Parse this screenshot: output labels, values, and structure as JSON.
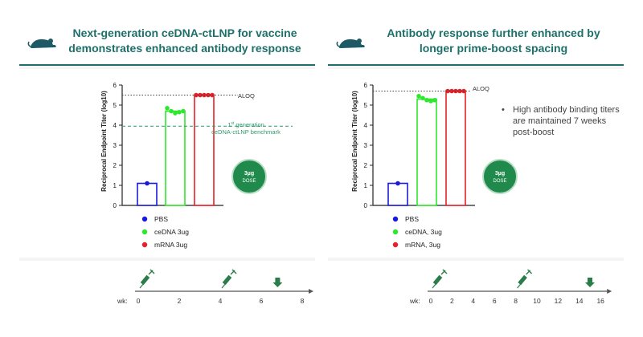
{
  "panels": [
    {
      "title_line1": "Next-generation ceDNA-ctLNP for vaccine",
      "title_line2": "demonstrates enhanced antibody response",
      "legend": [
        "PBS",
        "ceDNA 3ug",
        "mRNA 3ug"
      ],
      "annotation": "",
      "timeline": {
        "label": "wk:",
        "ticks": [
          "0",
          "2",
          "4",
          "6",
          "8"
        ]
      }
    },
    {
      "title_line1": "Antibody response further enhanced by",
      "title_line2": "longer prime-boost spacing",
      "legend": [
        "PBS",
        "ceDNA, 3ug",
        "mRNA, 3ug"
      ],
      "annotation": "High antibody binding titers are maintained 7 weeks post-boost",
      "timeline": {
        "label": "wk:",
        "ticks": [
          "0",
          "2",
          "4",
          "6",
          "8",
          "10",
          "12",
          "14",
          "16"
        ]
      }
    }
  ],
  "colors": {
    "teal": "#1e6f6a",
    "green_badge": "#1f8a4c",
    "pbs": "#1a1adb",
    "cedna": "#2ee82e",
    "mrna": "#e8202a",
    "benchmark": "#2e9b6b"
  },
  "icons": {
    "species": "mouse-icon",
    "dose": "syringe-icon",
    "sample": "down-arrow-icon"
  },
  "chart_data": [
    {
      "type": "bar",
      "ylabel": "Reciprocal Endpoint Titer (log10)",
      "ylim": [
        0,
        6
      ],
      "yticks": [
        "0",
        "1",
        "2",
        "3",
        "4",
        "5",
        "6"
      ],
      "categories": [
        "PBS",
        "ceDNA 3ug",
        "mRNA 3ug"
      ],
      "values": [
        1.1,
        4.7,
        5.5
      ],
      "points": [
        [
          1.1
        ],
        [
          4.85,
          4.7,
          4.6,
          4.65,
          4.7
        ],
        [
          5.5,
          5.5,
          5.5,
          5.5,
          5.5
        ]
      ],
      "reference_lines": [
        {
          "name": "ALOQ",
          "value": 5.5,
          "label": "ALOQ"
        },
        {
          "name": "benchmark",
          "value": 3.95,
          "label_sup_prefix": "1",
          "label_sup": "st",
          "label_line1": " generation",
          "label_line2": "ceDNA-ctLNP benchmark"
        }
      ],
      "badge": {
        "line1": "3µg",
        "line2": "DOSE"
      }
    },
    {
      "type": "bar",
      "ylabel": "Reciprocal Endpoint Titer (log10)",
      "ylim": [
        0,
        6
      ],
      "yticks": [
        "0",
        "1",
        "2",
        "3",
        "4",
        "5",
        "6"
      ],
      "categories": [
        "PBS",
        "ceDNA, 3ug",
        "mRNA, 3ug"
      ],
      "values": [
        1.1,
        5.3,
        5.7
      ],
      "points": [
        [
          1.1
        ],
        [
          5.45,
          5.35,
          5.25,
          5.2,
          5.25
        ],
        [
          5.7,
          5.7,
          5.7,
          5.7,
          5.7
        ]
      ],
      "reference_lines": [
        {
          "name": "ALOQ",
          "value": 5.7,
          "label": "ALOQ"
        }
      ],
      "badge": {
        "line1": "3µg",
        "line2": "DOSE"
      }
    }
  ],
  "timelines": [
    {
      "doses_wk": [
        0,
        4
      ],
      "sample_wk": [
        6.8
      ],
      "max_wk": 8
    },
    {
      "doses_wk": [
        0,
        8
      ],
      "sample_wk": [
        15
      ],
      "max_wk": 16
    }
  ]
}
